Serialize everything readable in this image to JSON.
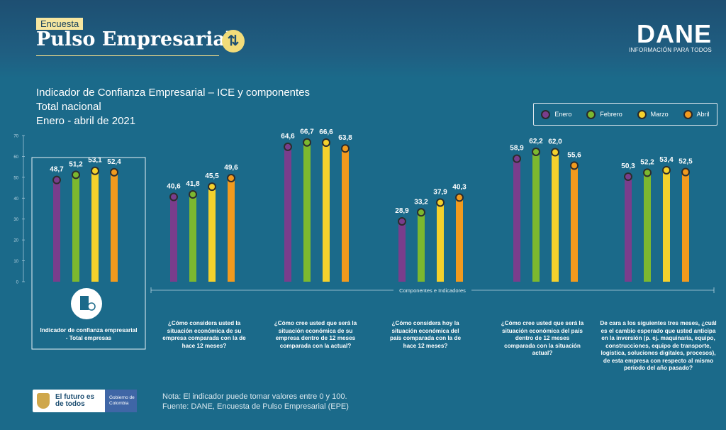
{
  "header": {
    "tag": "Encuesta",
    "brand": "Pulso Empresarial",
    "logo_main": "DANE",
    "logo_sub": "INFORMACIÓN PARA TODOS"
  },
  "title": {
    "line1": "Indicador de Confianza Empresarial – ICE y componentes",
    "line2": "Total nacional",
    "line3": "Enero - abril de 2021"
  },
  "chart_data": {
    "type": "bar",
    "categories": [
      "Indicador de confianza empresarial - Total empresas",
      "¿Cómo considera usted la situación económica de su empresa comparada con la de hace 12 meses?",
      "¿Cómo cree usted que será la situación económica de su empresa dentro de 12 meses comparada con la actual?",
      "¿Cómo considera hoy la situación económica del país comparada con la de hace 12 meses?",
      "¿Cómo cree usted que será la situación económica del país dentro de 12 meses comparada con la situación actual?",
      "De cara a los siguientes tres meses, ¿cuál es el cambio esperado que usted anticipa en la inversión (p. ej. maquinaria, equipo, construcciones, equipo de transporte, logística, soluciones digitales, procesos), de esta empresa con respecto al mismo periodo del año pasado?"
    ],
    "series": [
      {
        "name": "Enero",
        "color": "#7a3d8c",
        "values": [
          48.7,
          40.6,
          64.6,
          28.9,
          58.9,
          50.3
        ]
      },
      {
        "name": "Febrero",
        "color": "#7cb82f",
        "values": [
          51.2,
          41.8,
          66.7,
          33.2,
          62.2,
          52.2
        ]
      },
      {
        "name": "Marzo",
        "color": "#f4d12c",
        "values": [
          53.1,
          45.5,
          66.6,
          37.9,
          62.0,
          53.4
        ]
      },
      {
        "name": "Abril",
        "color": "#f29a1e",
        "values": [
          52.4,
          49.6,
          63.8,
          40.3,
          55.6,
          52.5
        ]
      }
    ],
    "value_labels": [
      [
        "48,7",
        "40,6",
        "64,6",
        "28,9",
        "58,9",
        "50,3"
      ],
      [
        "51,2",
        "41,8",
        "66,7",
        "33,2",
        "62,2",
        "52,2"
      ],
      [
        "53,1",
        "45,5",
        "66,6",
        "37,9",
        "62,0",
        "53,4"
      ],
      [
        "52,4",
        "49,6",
        "63,8",
        "40,3",
        "55,6",
        "52,5"
      ]
    ],
    "yticks": [
      "0",
      "10",
      "20",
      "30",
      "40",
      "50",
      "60",
      "70"
    ],
    "ylim": [
      0,
      70
    ],
    "axis_label": "Componentes e Indicadores",
    "legend_position": "top-right",
    "grid": false
  },
  "footer": {
    "logo_text": "El futuro es de todos",
    "gov_text": "Gobierno de Colombia",
    "note_label": "Nota:",
    "note_text": "El indicador puede tomar valores entre 0 y 100.",
    "source_label": "Fuente:",
    "source_text": "DANE, Encuesta de Pulso Empresarial (EPE)"
  }
}
